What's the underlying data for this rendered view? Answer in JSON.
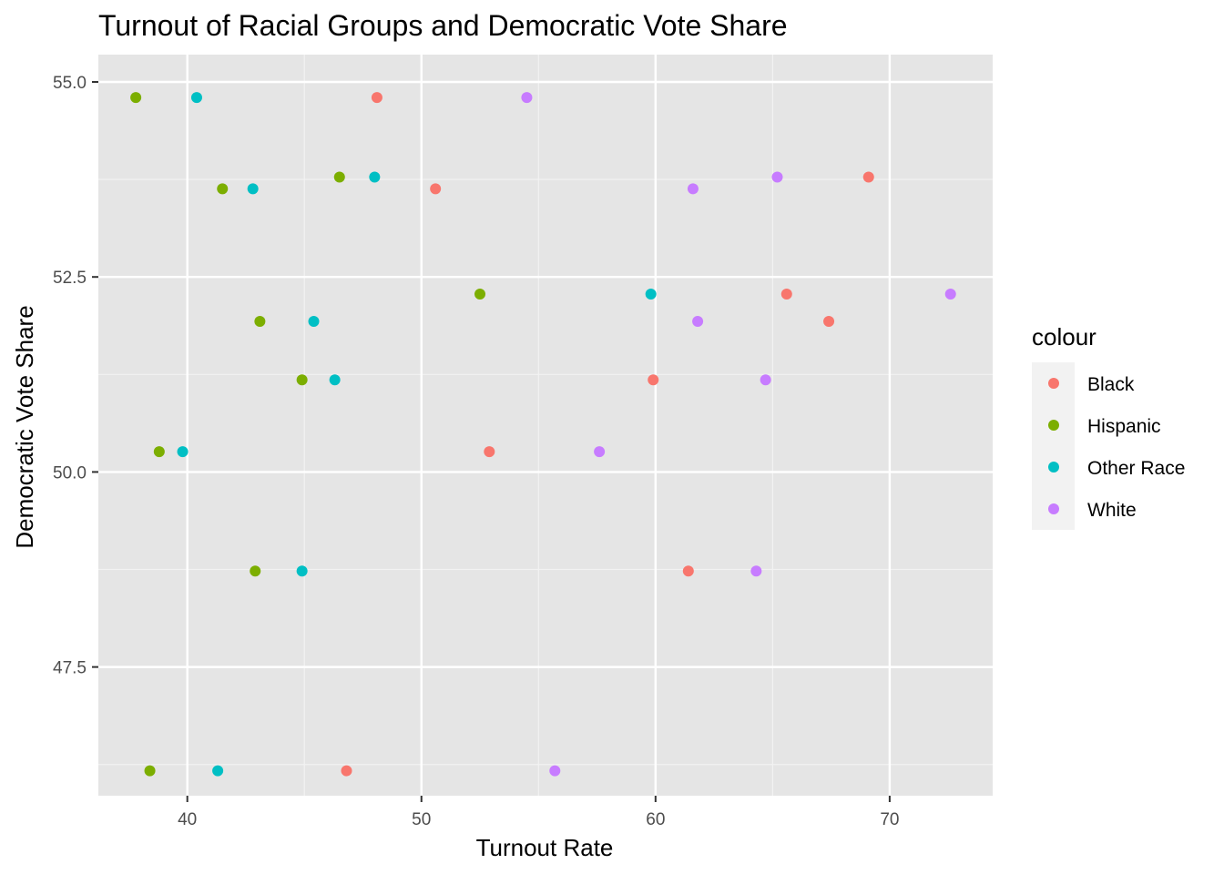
{
  "chart_data": {
    "type": "scatter",
    "title": "Turnout of Racial Groups and Democratic Vote Share",
    "xlabel": "Turnout Rate",
    "ylabel": "Democratic Vote Share",
    "xlim": [
      36.2,
      74.4
    ],
    "ylim": [
      45.85,
      55.35
    ],
    "x_ticks": [
      40,
      50,
      60,
      70
    ],
    "x_tick_labels": [
      "40",
      "50",
      "60",
      "70"
    ],
    "x_minor_ticks": [
      45,
      55,
      65
    ],
    "y_ticks": [
      47.5,
      50.0,
      52.5,
      55.0
    ],
    "y_tick_labels": [
      "47.5",
      "50.0",
      "52.5",
      "55.0"
    ],
    "y_minor_ticks": [
      46.25,
      48.75,
      51.25,
      53.75
    ],
    "grid": true,
    "panel_background": "#e5e5e5",
    "legend": {
      "title": "colour",
      "position": "right"
    },
    "series": [
      {
        "name": "Black",
        "color": "#f8766d",
        "points": [
          [
            48.1,
            54.8
          ],
          [
            50.6,
            53.63
          ],
          [
            69.1,
            53.78
          ],
          [
            65.6,
            52.28
          ],
          [
            67.4,
            51.93
          ],
          [
            59.9,
            51.18
          ],
          [
            52.9,
            50.26
          ],
          [
            61.4,
            48.73
          ],
          [
            46.8,
            46.17
          ]
        ]
      },
      {
        "name": "Hispanic",
        "color": "#7cae00",
        "points": [
          [
            37.8,
            54.8
          ],
          [
            41.5,
            53.63
          ],
          [
            46.5,
            53.78
          ],
          [
            52.5,
            52.28
          ],
          [
            43.1,
            51.93
          ],
          [
            44.9,
            51.18
          ],
          [
            38.8,
            50.26
          ],
          [
            42.9,
            48.73
          ],
          [
            38.4,
            46.17
          ]
        ]
      },
      {
        "name": "Other Race",
        "color": "#00bfc4",
        "points": [
          [
            40.4,
            54.8
          ],
          [
            42.8,
            53.63
          ],
          [
            48.0,
            53.78
          ],
          [
            59.8,
            52.28
          ],
          [
            45.4,
            51.93
          ],
          [
            46.3,
            51.18
          ],
          [
            39.8,
            50.26
          ],
          [
            44.9,
            48.73
          ],
          [
            41.3,
            46.17
          ]
        ]
      },
      {
        "name": "White",
        "color": "#c77cff",
        "points": [
          [
            54.5,
            54.8
          ],
          [
            61.6,
            53.63
          ],
          [
            65.2,
            53.78
          ],
          [
            72.6,
            52.28
          ],
          [
            61.8,
            51.93
          ],
          [
            64.7,
            51.18
          ],
          [
            57.6,
            50.26
          ],
          [
            64.3,
            48.73
          ],
          [
            55.7,
            46.17
          ]
        ]
      }
    ]
  }
}
